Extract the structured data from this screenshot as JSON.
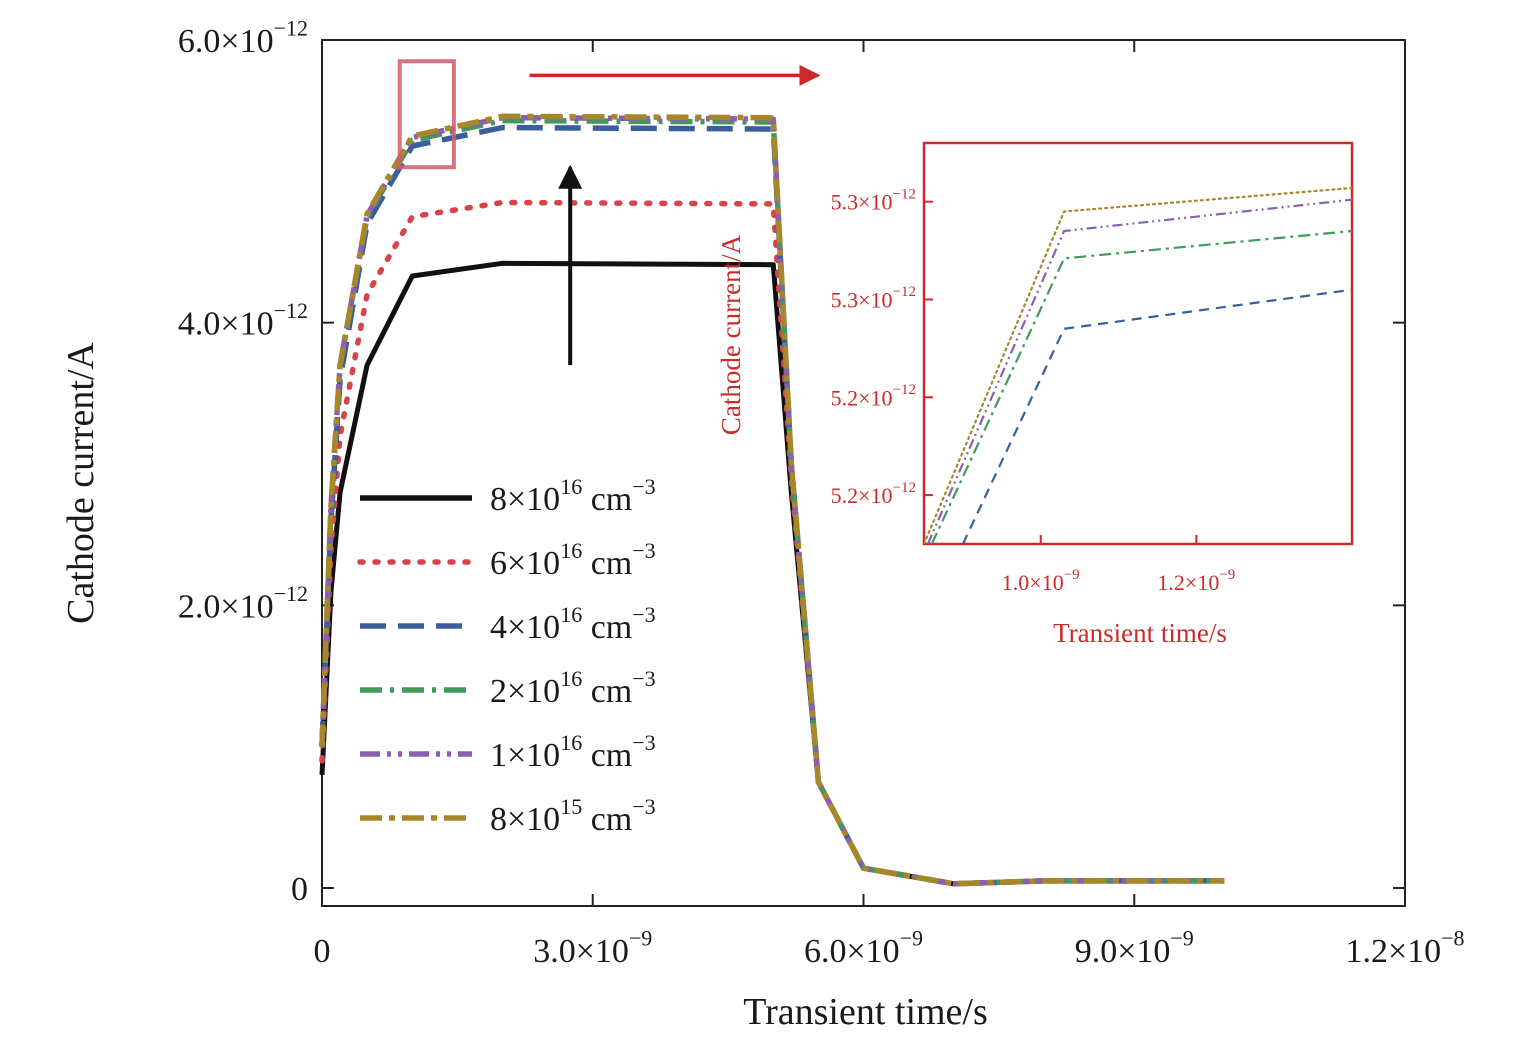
{
  "chart_data": [
    {
      "type": "line",
      "xlabel": "Transient time/s",
      "ylabel": "Cathode current/A",
      "xlim": [
        0,
        1.2e-08
      ],
      "ylim": [
        0,
        6e-12
      ],
      "x_ticks": [
        0,
        3e-09,
        6e-09,
        9e-09,
        1.2e-08
      ],
      "x_tick_labels": [
        {
          "mantissa": "0",
          "exp": ""
        },
        {
          "mantissa": "3.0×10",
          "exp": "−9"
        },
        {
          "mantissa": "6.0×10",
          "exp": "−9"
        },
        {
          "mantissa": "9.0×10",
          "exp": "−9"
        },
        {
          "mantissa": "1.2×10",
          "exp": "−8"
        }
      ],
      "y_ticks": [
        0,
        2e-12,
        4e-12,
        6e-12
      ],
      "y_tick_labels": [
        {
          "mantissa": "0",
          "exp": ""
        },
        {
          "mantissa": "2.0×10",
          "exp": "−12"
        },
        {
          "mantissa": "4.0×10",
          "exp": "−12"
        },
        {
          "mantissa": "6.0×10",
          "exp": "−12"
        }
      ],
      "legend_position": "lower-left",
      "grid": false,
      "series": [
        {
          "legend_base": "8×10",
          "legend_exp": "16",
          "legend_unit": " cm",
          "legend_unit_exp": "−3",
          "color": "#111111",
          "dash": "solid",
          "x": [
            0,
            1e-10,
            2e-10,
            5e-10,
            1e-09,
            2e-09,
            5e-09,
            5.2e-09,
            5.5e-09,
            6e-09,
            7e-09,
            8e-09,
            1e-08
          ],
          "y": [
            8e-13,
            2.1e-12,
            2.8e-12,
            3.7e-12,
            4.33e-12,
            4.42e-12,
            4.41e-12,
            2.8e-12,
            7.5e-13,
            1.4e-13,
            3e-14,
            5e-14,
            5e-14
          ]
        },
        {
          "legend_base": "6×10",
          "legend_exp": "16",
          "legend_unit": " cm",
          "legend_unit_exp": "−3",
          "color": "#d8424b",
          "dash": "dotted",
          "x": [
            0,
            1e-10,
            2e-10,
            5e-10,
            1e-09,
            2e-09,
            5e-09,
            5.2e-09,
            5.5e-09,
            6e-09,
            7e-09,
            8e-09,
            1e-08
          ],
          "y": [
            9e-13,
            2.4e-12,
            3.2e-12,
            4.2e-12,
            4.75e-12,
            4.85e-12,
            4.84e-12,
            2.9e-12,
            7.5e-13,
            1.4e-13,
            3e-14,
            5e-14,
            5e-14
          ]
        },
        {
          "legend_base": "4×10",
          "legend_exp": "16",
          "legend_unit": " cm",
          "legend_unit_exp": "−3",
          "color": "#3a5d9c",
          "dash": "dashed",
          "x": [
            0,
            1e-10,
            2e-10,
            5e-10,
            1e-09,
            2e-09,
            5e-09,
            5.2e-09,
            5.5e-09,
            6e-09,
            7e-09,
            8e-09,
            1e-08
          ],
          "y": [
            1e-12,
            2.6e-12,
            3.6e-12,
            4.7e-12,
            5.25e-12,
            5.38e-12,
            5.37e-12,
            3e-12,
            7.5e-13,
            1.4e-13,
            3e-14,
            5e-14,
            5e-14
          ]
        },
        {
          "legend_base": "2×10",
          "legend_exp": "16",
          "legend_unit": " cm",
          "legend_unit_exp": "−3",
          "color": "#3f9a5c",
          "dash": "dashdot",
          "x": [
            0,
            1e-10,
            2e-10,
            5e-10,
            1e-09,
            2e-09,
            5e-09,
            5.2e-09,
            5.5e-09,
            6e-09,
            7e-09,
            8e-09,
            1e-08
          ],
          "y": [
            1e-12,
            2.7e-12,
            3.7e-12,
            4.75e-12,
            5.29e-12,
            5.43e-12,
            5.42e-12,
            3e-12,
            7.5e-13,
            1.4e-13,
            3e-14,
            5e-14,
            5e-14
          ]
        },
        {
          "legend_base": "1×10",
          "legend_exp": "16",
          "legend_unit": " cm",
          "legend_unit_exp": "−3",
          "color": "#8a5fb0",
          "dash": "dashdotdot",
          "x": [
            0,
            1e-10,
            2e-10,
            5e-10,
            1e-09,
            2e-09,
            5e-09,
            5.2e-09,
            5.5e-09,
            6e-09,
            7e-09,
            8e-09,
            1e-08
          ],
          "y": [
            1e-12,
            2.7e-12,
            3.7e-12,
            4.76e-12,
            5.31e-12,
            5.45e-12,
            5.44e-12,
            3e-12,
            7.5e-13,
            1.4e-13,
            3e-14,
            5e-14,
            5e-14
          ]
        },
        {
          "legend_base": "8×10",
          "legend_exp": "15",
          "legend_unit": " cm",
          "legend_unit_exp": "−3",
          "color": "#a8862a",
          "dash": "dashdot-heavy",
          "x": [
            0,
            1e-10,
            2e-10,
            5e-10,
            1e-09,
            2e-09,
            5e-09,
            5.2e-09,
            5.5e-09,
            6e-09,
            7e-09,
            8e-09,
            1e-08
          ],
          "y": [
            1e-12,
            2.7e-12,
            3.7e-12,
            4.77e-12,
            5.32e-12,
            5.46e-12,
            5.45e-12,
            3e-12,
            7.5e-13,
            1.4e-13,
            3e-14,
            5e-14,
            5e-14
          ]
        }
      ],
      "annotations": [
        {
          "kind": "zoom-box",
          "color": "#d35a6a",
          "x_range": [
            8.5e-10,
            1.45e-09
          ],
          "y_range": [
            5.1e-12,
            5.85e-12
          ]
        },
        {
          "kind": "arrow",
          "color": "#cc2a2a",
          "from": [
            2.3e-09,
            5.75e-12
          ],
          "to": [
            5.5e-09,
            5.75e-12
          ]
        },
        {
          "kind": "arrow",
          "color": "#111111",
          "from": [
            2.75e-09,
            3.7e-12
          ],
          "to": [
            2.75e-09,
            5.1e-12
          ]
        }
      ]
    },
    {
      "type": "line",
      "role": "inset",
      "xlabel": "Transient time/s",
      "ylabel": "Cathode current/A",
      "color": "#cc2a2a",
      "xlim": [
        8.5e-10,
        1.4e-09
      ],
      "ylim": [
        5.14e-12,
        5.345e-12
      ],
      "x_ticks": [
        1e-09,
        1.2e-09
      ],
      "x_tick_labels": [
        {
          "mantissa": "1.0×10",
          "exp": "−9"
        },
        {
          "mantissa": "1.2×10",
          "exp": "−9"
        }
      ],
      "y_ticks": [
        5.165e-12,
        5.215e-12,
        5.265e-12,
        5.315e-12
      ],
      "y_tick_labels": [
        {
          "mantissa": "5.2×10",
          "exp": "−12"
        },
        {
          "mantissa": "5.2×10",
          "exp": "−12"
        },
        {
          "mantissa": "5.3×10",
          "exp": "−12"
        },
        {
          "mantissa": "5.3×10",
          "exp": "−12"
        }
      ],
      "series": [
        {
          "color": "#3a5d9c",
          "dash": "dashed",
          "x": [
            9e-10,
            1.03e-09,
            1.4e-09
          ],
          "y": [
            5.14e-12,
            5.25e-12,
            5.27e-12
          ]
        },
        {
          "color": "#3f9a5c",
          "dash": "dashdot",
          "x": [
            8.6e-10,
            1.03e-09,
            1.4e-09
          ],
          "y": [
            5.14e-12,
            5.286e-12,
            5.3e-12
          ]
        },
        {
          "color": "#8a5fb0",
          "dash": "dashdotdot",
          "x": [
            8.55e-10,
            1.03e-09,
            1.4e-09
          ],
          "y": [
            5.14e-12,
            5.3e-12,
            5.316e-12
          ]
        },
        {
          "color": "#a8862a",
          "dash": "dotted",
          "x": [
            8.5e-10,
            1.03e-09,
            1.4e-09
          ],
          "y": [
            5.14e-12,
            5.31e-12,
            5.322e-12
          ]
        }
      ]
    }
  ]
}
